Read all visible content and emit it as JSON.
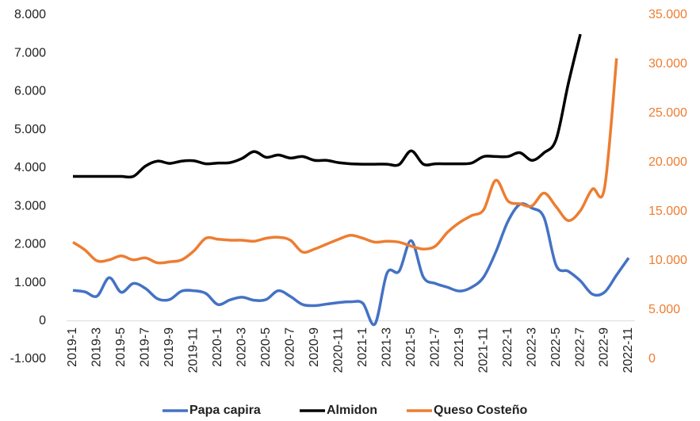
{
  "chart_data": {
    "type": "line",
    "categories": [
      "2019-1",
      null,
      "2019-3",
      null,
      "2019-5",
      null,
      "2019-7",
      null,
      "2019-9",
      null,
      "2019-11",
      null,
      "2020-1",
      null,
      "2020-3",
      null,
      "2020-5",
      null,
      "2020-7",
      null,
      "2020-9",
      null,
      "2020-11",
      null,
      "2021-1",
      null,
      "2021-3",
      null,
      "2021-5",
      null,
      "2021-7",
      null,
      "2021-9",
      null,
      "2021-11",
      null,
      "2022-1",
      null,
      "2022-3",
      null,
      "2022-5",
      null,
      "2022-7",
      null,
      "2022-9",
      null,
      "2022-11"
    ],
    "series": [
      {
        "name": "Papa capira",
        "color": "#4472c4",
        "values": [
          800,
          760,
          650,
          1130,
          750,
          980,
          850,
          580,
          560,
          780,
          790,
          720,
          430,
          550,
          620,
          540,
          560,
          790,
          640,
          430,
          400,
          440,
          480,
          500,
          460,
          -80,
          1250,
          1300,
          2100,
          1150,
          980,
          880,
          780,
          880,
          1150,
          1800,
          2600,
          3050,
          2950,
          2700,
          1450,
          1300,
          1050,
          700,
          750,
          1200,
          1650
        ]
      },
      {
        "name": "Almidon",
        "color": "#000000",
        "values": [
          3780,
          3780,
          3780,
          3780,
          3780,
          3780,
          4050,
          4180,
          4120,
          4180,
          4190,
          4110,
          4130,
          4140,
          4250,
          4430,
          4280,
          4340,
          4260,
          4300,
          4200,
          4200,
          4140,
          4110,
          4100,
          4100,
          4100,
          4090,
          4450,
          4100,
          4110,
          4110,
          4110,
          4130,
          4300,
          4300,
          4300,
          4400,
          4200,
          4400,
          4750,
          6200,
          7500,
          null,
          null,
          null,
          null
        ]
      },
      {
        "name": "Queso Costeño",
        "color": "#ed7d31",
        "axis": "y2",
        "values": [
          11900,
          11100,
          10000,
          10100,
          10500,
          10100,
          10300,
          9800,
          9900,
          10100,
          11000,
          12300,
          12200,
          12100,
          12100,
          12000,
          12300,
          12400,
          12100,
          10900,
          11200,
          11700,
          12200,
          12600,
          12300,
          11900,
          12000,
          11900,
          11500,
          11200,
          11500,
          12900,
          13900,
          14600,
          15200,
          18200,
          16100,
          15800,
          15600,
          16900,
          15500,
          14100,
          15100,
          17300,
          17400,
          30600,
          null
        ]
      }
    ],
    "ylim": [
      -1000,
      8000
    ],
    "yticks": [
      {
        "value": -1000,
        "label": "-1.000"
      },
      0,
      {
        "value": 1000,
        "label": "1.000"
      },
      {
        "value": 2000,
        "label": "2.000"
      },
      {
        "value": 3000,
        "label": "3.000"
      },
      {
        "value": 4000,
        "label": "4.000"
      },
      {
        "value": 5000,
        "label": "5.000"
      },
      {
        "value": 6000,
        "label": "6.000"
      },
      {
        "value": 7000,
        "label": "7.000"
      },
      {
        "value": 8000,
        "label": "8.000"
      }
    ],
    "y2lim": [
      0,
      35000
    ],
    "y2ticks": [
      0,
      {
        "value": 5000,
        "label": "5.000"
      },
      {
        "value": 10000,
        "label": "10.000"
      },
      {
        "value": 15000,
        "label": "15.000"
      },
      {
        "value": 20000,
        "label": "20.000"
      },
      {
        "value": 25000,
        "label": "25.000"
      },
      {
        "value": 30000,
        "label": "30.000"
      },
      {
        "value": 35000,
        "label": "35.000"
      }
    ],
    "legend": "bottom"
  }
}
